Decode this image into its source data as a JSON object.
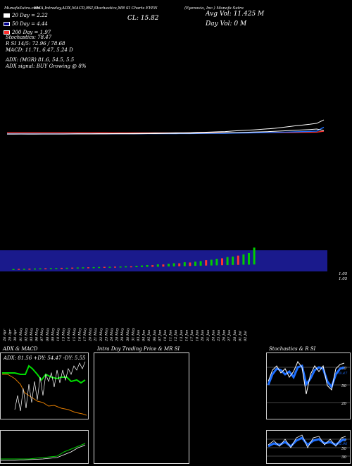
{
  "colors": {
    "background": "#000000",
    "volume_band": "#1a1a8c",
    "up": "#00cc00",
    "down": "#ff3333",
    "price_line": "#ffffff",
    "ema_blue": "#1e6fff",
    "ema_orange": "#ff8c1a",
    "adx_green": "#00dd00",
    "adx_orange": "#e07b00"
  },
  "header": {
    "line1": "MunafaSutra.com",
    "title": "EMA,Intraday,ADX,MACD,RSI,Stochastics,MR SI Charts EYEN",
    "company": "(Eyenovia, Inc.) Munafa Sutra",
    "close": "CL: 15.82",
    "avg_vol": "Avg Vol: 11.425 M",
    "day_vol": "Day Vol: 0  M"
  },
  "legend": [
    {
      "label": "20  Day = 2.22",
      "color": "#ffffff"
    },
    {
      "label": "50  Day = 4.44",
      "color": "#00008b"
    },
    {
      "label": "200  Day = 1.97",
      "color": "#ff2a2a"
    }
  ],
  "indicators": {
    "stochastics": "Stochastics: 78.47",
    "rsi": "R             SI 14/5: 72.96 / 78.68",
    "macd": "MACD: 11.71, 6.47, 5.24  D",
    "adx": "ADX:                   (MGR) 81.6,  54.5,  5.5",
    "adx_signal": "ADX  signal:                           BUY Growing @ 8%"
  },
  "volume_axis_labels": [
    "1.05",
    "1.05"
  ],
  "x_dates": [
    "26 Apr",
    "29 Apr",
    "30 Apr",
    "01 May",
    "02 May",
    "03 May",
    "06 May",
    "07 May",
    "08 May",
    "09 May",
    "10 May",
    "13 May",
    "14 May",
    "15 May",
    "16 May",
    "17 May",
    "20 May",
    "21 May",
    "22 May",
    "23 May",
    "24 May",
    "28 May",
    "29 May",
    "30 May",
    "31 May",
    "03 Jun",
    "04 Jun",
    "05 Jun",
    "06 Jun",
    "07 Jun",
    "10 Jun",
    "11 Jun",
    "12 Jun",
    "13 Jun",
    "14 Jun",
    "17 Jun",
    "18 Jun",
    "20 Jun",
    "21 Jun",
    "24 Jun",
    "25 Jun",
    "26 Jun",
    "27 Jun",
    "28 Jun",
    "01 Jul",
    "02 Jul"
  ],
  "panels": {
    "adx_title": "ADX  & MACD",
    "adx_values": "ADX: 81.56   +DY: 54.47  -DY: 5.55",
    "intraday_title": "Intra  Day Trading Price  & MR                  SI",
    "stoch_title": "Stochastics & R                  SI",
    "stoch_levels": [
      "80",
      "50",
      "20"
    ],
    "rsi_levels": [
      "70",
      "50",
      "30"
    ],
    "stoch_tag": "78.47",
    "rsi_tag": "72.96"
  },
  "chart_data": {
    "type": "line",
    "title": "EMA,Intraday,ADX,MACD,RSI,Stochastics,MR SI Charts EYEN",
    "ylabel": "",
    "price": [
      0.9,
      0.9,
      0.92,
      0.91,
      0.9,
      0.92,
      0.93,
      0.92,
      0.93,
      0.95,
      0.96,
      0.98,
      0.99,
      1.0,
      1.01,
      1.02,
      1.05,
      1.06,
      1.1,
      1.12,
      1.15,
      1.2,
      1.22,
      1.25,
      1.28,
      1.3,
      1.35,
      1.45,
      1.5,
      1.6,
      1.7,
      1.8,
      2.0,
      2.2,
      2.4,
      2.6,
      2.9,
      3.2,
      3.6,
      4.2,
      5.0,
      5.8,
      6.6,
      7.6,
      9.0,
      15.82
    ],
    "ema20": [
      0.9,
      0.9,
      0.9,
      0.9,
      0.9,
      0.91,
      0.91,
      0.91,
      0.91,
      0.92,
      0.92,
      0.93,
      0.93,
      0.94,
      0.95,
      0.96,
      0.97,
      0.98,
      0.99,
      1.0,
      1.02,
      1.03,
      1.05,
      1.07,
      1.09,
      1.11,
      1.13,
      1.16,
      1.19,
      1.23,
      1.27,
      1.31,
      1.37,
      1.43,
      1.5,
      1.58,
      1.67,
      1.77,
      1.89,
      2.03,
      2.2,
      2.4,
      2.61,
      2.84,
      3.12,
      2.22
    ],
    "ema50": [
      0.95,
      0.95,
      0.95,
      0.95,
      0.95,
      0.95,
      0.95,
      0.95,
      0.95,
      0.95,
      0.96,
      0.96,
      0.96,
      0.97,
      0.97,
      0.97,
      0.98,
      0.98,
      0.99,
      0.99,
      1.0,
      1.01,
      1.02,
      1.03,
      1.04,
      1.05,
      1.06,
      1.08,
      1.09,
      1.11,
      1.13,
      1.15,
      1.18,
      1.21,
      1.24,
      1.28,
      1.32,
      1.37,
      1.42,
      1.49,
      1.57,
      1.66,
      1.76,
      1.87,
      2.01,
      4.44
    ],
    "ema200": [
      1.3,
      1.3,
      1.29,
      1.29,
      1.29,
      1.28,
      1.28,
      1.28,
      1.27,
      1.27,
      1.27,
      1.26,
      1.26,
      1.26,
      1.26,
      1.25,
      1.25,
      1.25,
      1.25,
      1.25,
      1.25,
      1.25,
      1.25,
      1.25,
      1.25,
      1.25,
      1.26,
      1.26,
      1.26,
      1.27,
      1.27,
      1.28,
      1.28,
      1.29,
      1.3,
      1.31,
      1.32,
      1.34,
      1.35,
      1.37,
      1.4,
      1.43,
      1.46,
      1.5,
      1.55,
      1.97
    ],
    "volume": [
      0.05,
      0.04,
      0.05,
      0.04,
      0.05,
      0.05,
      0.06,
      0.05,
      0.06,
      0.05,
      0.07,
      0.06,
      0.08,
      0.07,
      0.09,
      0.08,
      0.1,
      0.09,
      0.12,
      0.11,
      0.14,
      0.16,
      0.13,
      0.18,
      0.2,
      0.24,
      0.22,
      0.3,
      0.28,
      0.35,
      0.4,
      0.38,
      0.5,
      0.45,
      0.55,
      0.6,
      0.7,
      0.75,
      0.85,
      0.9,
      1.05,
      1.1,
      1.2,
      1.35,
      1.5,
      2.2
    ],
    "volume_up": [
      true,
      false,
      true,
      false,
      true,
      true,
      false,
      true,
      true,
      false,
      true,
      false,
      true,
      true,
      false,
      true,
      true,
      false,
      true,
      false,
      true,
      true,
      false,
      true,
      true,
      true,
      false,
      true,
      false,
      true,
      true,
      false,
      true,
      false,
      true,
      true,
      false,
      true,
      true,
      false,
      true,
      true,
      false,
      true,
      true,
      true
    ]
  }
}
